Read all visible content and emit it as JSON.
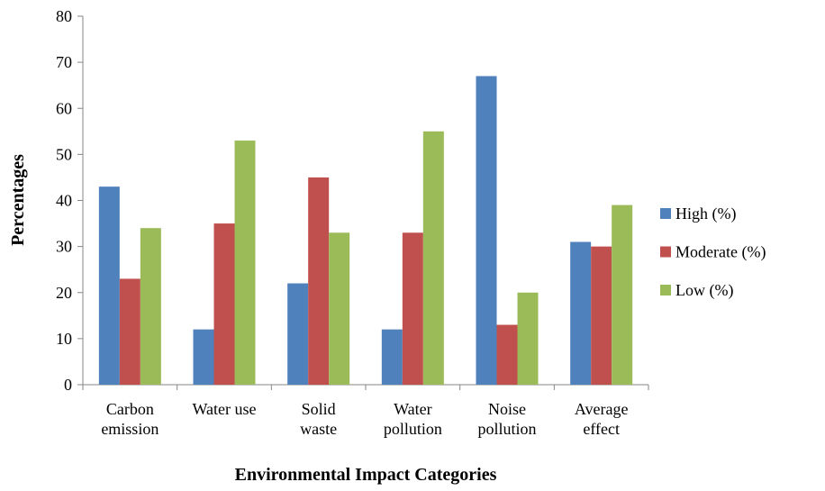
{
  "chart_data": {
    "type": "bar",
    "y_label": "Percentages",
    "x_label": "Environmental Impact Categories",
    "categories": [
      "Carbon\nemission",
      "Water use",
      "Solid\nwaste",
      "Water\npollution",
      "Noise\npollution",
      "Average\neffect"
    ],
    "series": [
      {
        "name": "High (%)",
        "color": "#4f81bd",
        "values": [
          43,
          12,
          22,
          12,
          67,
          31
        ]
      },
      {
        "name": "Moderate (%)",
        "color": "#c0504d",
        "values": [
          23,
          35,
          45,
          33,
          13,
          30
        ]
      },
      {
        "name": "Low (%)",
        "color": "#9bbb59",
        "values": [
          34,
          53,
          33,
          55,
          20,
          39
        ]
      }
    ],
    "ylim": [
      0,
      80
    ],
    "yticks": [
      0,
      10,
      20,
      30,
      40,
      50,
      60,
      70,
      80
    ],
    "legend": "right"
  }
}
